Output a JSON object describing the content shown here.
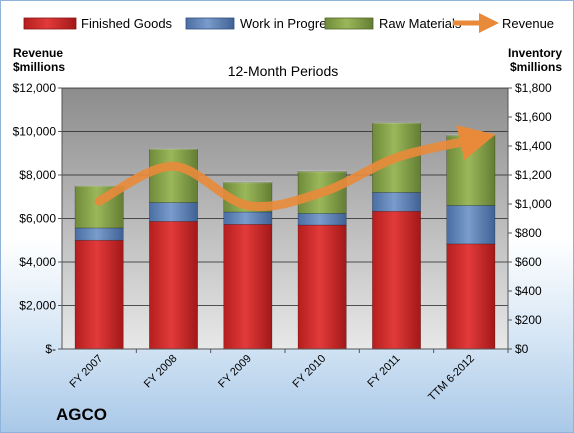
{
  "company": "AGCO",
  "chart_data": {
    "type": "bar",
    "stacked": true,
    "title": "12-Month Periods",
    "left_axis_label": [
      "Revenue",
      "$millions"
    ],
    "right_axis_label": [
      "Inventory",
      "$millions"
    ],
    "categories": [
      "FY 2007",
      "FY 2008",
      "FY 2009",
      "FY 2010",
      "FY 2011",
      "TTM 6-2012"
    ],
    "left_ylim": [
      0,
      12000
    ],
    "left_ticks": [
      0,
      2000,
      4000,
      6000,
      8000,
      10000,
      12000
    ],
    "left_tick_labels": [
      "$-",
      "$2,000",
      "$4,000",
      "$6,000",
      "$8,000",
      "$10,000",
      "$12,000"
    ],
    "right_ylim": [
      0,
      1800
    ],
    "right_ticks": [
      0,
      200,
      400,
      600,
      800,
      1000,
      1200,
      1400,
      1600,
      1800
    ],
    "right_tick_labels": [
      "$0",
      "$200",
      "$400",
      "$600",
      "$800",
      "$1,000",
      "$1,200",
      "$1,400",
      "$1,600",
      "$1,800"
    ],
    "legend_position": "top",
    "series": [
      {
        "name": "Finished Goods",
        "axis": "right",
        "color": "#d42a2a",
        "values": [
          750,
          880,
          860,
          855,
          950,
          725
        ]
      },
      {
        "name": "Work in Progress",
        "axis": "right",
        "color": "#5b7fb5",
        "values": [
          85,
          130,
          85,
          80,
          130,
          265
        ]
      },
      {
        "name": "Raw Materials",
        "axis": "right",
        "color": "#87a34a",
        "values": [
          290,
          370,
          205,
          290,
          480,
          485
        ]
      },
      {
        "name": "Revenue",
        "axis": "left",
        "type": "line",
        "color": "#e98a3a",
        "values": [
          6800,
          8400,
          6600,
          7200,
          8800,
          9600
        ]
      }
    ]
  }
}
